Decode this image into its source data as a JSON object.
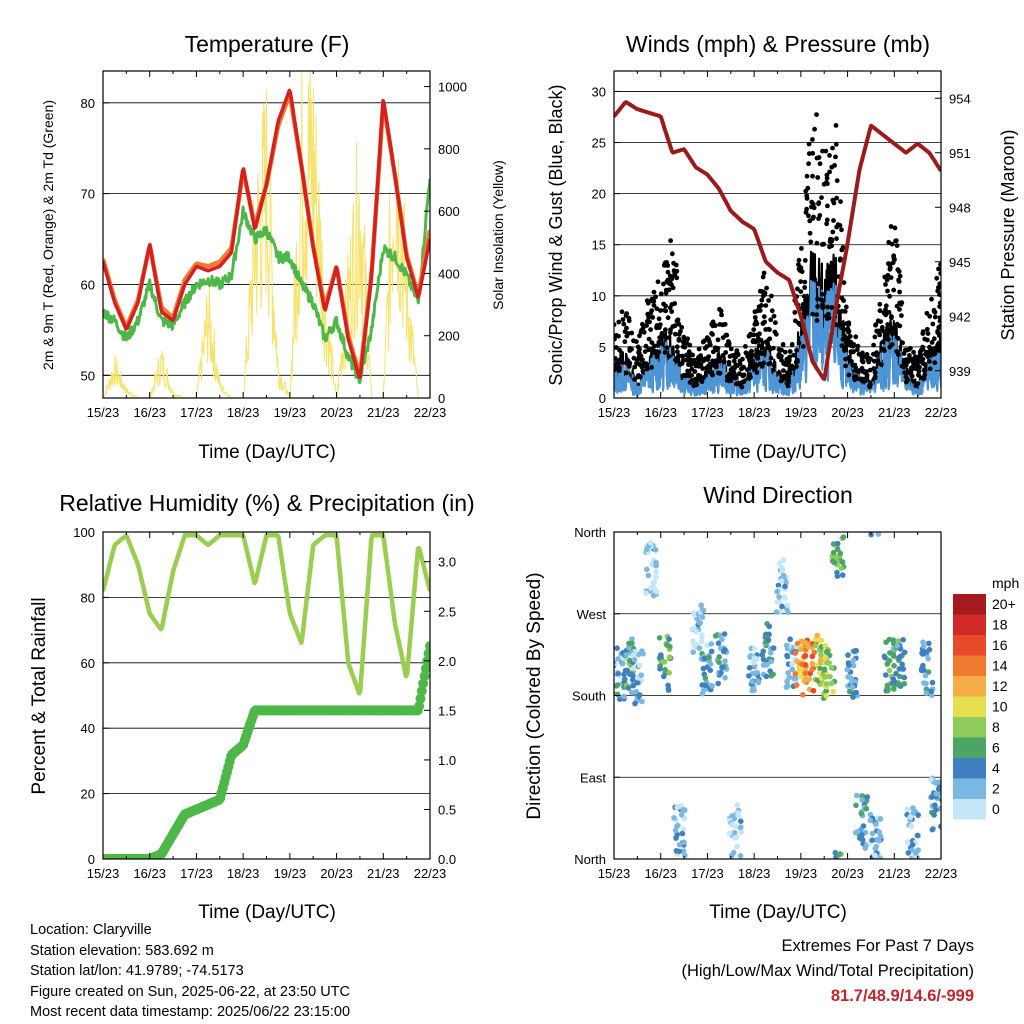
{
  "x_ticks": [
    "15/23",
    "16/23",
    "17/23",
    "18/23",
    "19/23",
    "20/23",
    "21/23",
    "22/23"
  ],
  "panels": {
    "temperature": {
      "title": "Temperature (F)",
      "ylabel_left": "2m & 9m T (Red, Orange) & 2m Td (Green)",
      "ylabel_right": "Solar Insolation (Yellow)",
      "xlabel": "Time (Day/UTC)",
      "left_ticks": [
        "50",
        "60",
        "70",
        "80"
      ],
      "right_ticks": [
        "0",
        "200",
        "400",
        "600",
        "800",
        "1000"
      ]
    },
    "winds": {
      "title": "Winds (mph) & Pressure (mb)",
      "ylabel_left": "Sonic/Prop Wind & Gust (Blue, Black)",
      "ylabel_right": "Station Pressure (Maroon)",
      "xlabel": "Time (Day/UTC)",
      "left_ticks": [
        "0",
        "5",
        "10",
        "15",
        "20",
        "25",
        "30"
      ],
      "right_ticks": [
        "939",
        "942",
        "945",
        "948",
        "951",
        "954"
      ]
    },
    "humidity": {
      "title": "Relative Humidity (%) & Precipitation (in)",
      "ylabel_left": "Percent & Total Rainfall",
      "xlabel": "Time (Day/UTC)",
      "left_ticks": [
        "0",
        "20",
        "40",
        "60",
        "80",
        "100"
      ],
      "right_ticks": [
        "0.0",
        "0.5",
        "1.0",
        "1.5",
        "2.0",
        "2.5",
        "3.0"
      ]
    },
    "direction": {
      "title": "Wind Direction",
      "ylabel_left": "Direction (Colored By Speed)",
      "xlabel": "Time (Day/UTC)",
      "left_ticks": [
        "North",
        "East",
        "South",
        "West",
        "North"
      ],
      "legend_unit": "mph",
      "legend_labels": [
        "20+",
        "18",
        "16",
        "14",
        "12",
        "10",
        "8",
        "6",
        "4",
        "2",
        "0"
      ],
      "legend_colors": [
        "#a51a1e",
        "#cf2a27",
        "#e84b2c",
        "#f07b30",
        "#f6ad45",
        "#e6df4f",
        "#8fcb5a",
        "#4aa566",
        "#3f80c0",
        "#7ab8e2",
        "#c5e6f7"
      ]
    }
  },
  "station": {
    "location": "Location: Claryville",
    "elevation": "Station elevation: 583.692 m",
    "latlon": "Station lat/lon: 41.9789; -74.5173",
    "created": "Figure created on Sun, 2025-06-22, at 23:50 UTC",
    "latest": "Most recent data timestamp: 2025/06/22 23:15:00"
  },
  "extremes": {
    "line1": "Extremes For Past 7 Days",
    "line2": "(High/Low/Max Wind/Total Precipitation)",
    "values": "81.7/48.9/14.6/-999"
  },
  "colors": {
    "temp_2m": "#d42020",
    "temp_9m": "#f07b30",
    "dewpoint": "#4db848",
    "insolation": "#f7e36b",
    "wind": "#4c96d7",
    "gust": "#000000",
    "pressure": "#9b1b1b",
    "humidity": "#9acd50",
    "precip": "#4db848"
  },
  "chart_data": [
    {
      "type": "line",
      "title": "Temperature (F)",
      "xlabel": "Time (Day/UTC)",
      "ylabel": "2m & 9m T (Red, Orange) & 2m Td (Green)",
      "ylabel_right": "Solar Insolation (Yellow)",
      "x_day": [
        15.0,
        15.25,
        15.5,
        15.75,
        16.0,
        16.25,
        16.5,
        16.75,
        17.0,
        17.25,
        17.5,
        17.75,
        18.0,
        18.25,
        18.5,
        18.75,
        19.0,
        19.25,
        19.5,
        19.75,
        20.0,
        20.25,
        20.5,
        20.75,
        21.0,
        21.25,
        21.5,
        21.75,
        22.0
      ],
      "ylim": [
        47.5,
        83.5
      ],
      "y2lim": [
        0,
        1050
      ],
      "series": [
        {
          "name": "2m T",
          "values": [
            62.5,
            58.0,
            55.0,
            58.0,
            64.5,
            57.0,
            56.0,
            60.0,
            62.0,
            61.5,
            62.0,
            63.5,
            73.0,
            66.0,
            71.0,
            78.0,
            81.5,
            73.0,
            64.0,
            57.0,
            62.0,
            54.0,
            49.5,
            61.0,
            80.5,
            72.0,
            63.0,
            58.5,
            65.0
          ]
        },
        {
          "name": "9m T",
          "values": [
            62.8,
            58.3,
            55.3,
            58.3,
            64.3,
            57.5,
            56.3,
            60.5,
            62.3,
            62.0,
            62.5,
            64.0,
            72.5,
            66.5,
            71.0,
            77.5,
            81.0,
            73.0,
            64.2,
            57.5,
            62.0,
            54.3,
            50.0,
            61.2,
            80.0,
            72.0,
            63.2,
            58.8,
            66.0
          ]
        },
        {
          "name": "2m Td",
          "values": [
            57.0,
            56.0,
            54.0,
            56.0,
            60.0,
            56.0,
            55.5,
            58.0,
            60.0,
            60.5,
            60.0,
            61.0,
            68.0,
            65.0,
            66.0,
            63.0,
            63.0,
            60.0,
            58.0,
            54.0,
            56.0,
            52.0,
            49.5,
            55.0,
            64.0,
            63.0,
            61.0,
            58.0,
            72.0
          ]
        },
        {
          "name": "Solar Insolation",
          "y_axis": "right",
          "values": [
            0,
            120,
            30,
            0,
            0,
            150,
            20,
            0,
            0,
            340,
            50,
            0,
            0,
            620,
            900,
            110,
            0,
            940,
            1000,
            360,
            0,
            420,
            800,
            0,
            0,
            1000,
            430,
            0,
            0
          ]
        }
      ]
    },
    {
      "type": "line",
      "title": "Winds (mph) & Pressure (mb)",
      "xlabel": "Time (Day/UTC)",
      "ylabel": "Sonic/Prop Wind & Gust (Blue, Black)",
      "ylabel_right": "Station Pressure (Maroon)",
      "x_day": [
        15.0,
        15.25,
        15.5,
        15.75,
        16.0,
        16.25,
        16.5,
        16.75,
        17.0,
        17.25,
        17.5,
        17.75,
        18.0,
        18.25,
        18.5,
        18.75,
        19.0,
        19.25,
        19.5,
        19.75,
        20.0,
        20.25,
        20.5,
        20.75,
        21.0,
        21.25,
        21.5,
        21.75,
        22.0
      ],
      "ylim": [
        0,
        32
      ],
      "y2lim": [
        937.5,
        955.5
      ],
      "series": [
        {
          "name": "Wind",
          "values": [
            2,
            3,
            1,
            3,
            4,
            5,
            2,
            1,
            2,
            3,
            2,
            1,
            3,
            4,
            2,
            1,
            5,
            10,
            8,
            9,
            3,
            2,
            1,
            4,
            6,
            2,
            1,
            3,
            4
          ]
        },
        {
          "name": "Gust",
          "values": [
            6,
            7,
            4,
            8,
            9,
            12,
            5,
            3,
            5,
            7,
            4,
            3,
            6,
            10,
            5,
            3,
            12,
            22,
            18,
            20,
            6,
            4,
            3,
            9,
            14,
            4,
            3,
            7,
            10
          ]
        },
        {
          "name": "Station Pressure",
          "y_axis": "right",
          "values": [
            953.0,
            953.8,
            953.4,
            953.2,
            953.0,
            951.0,
            951.2,
            950.2,
            949.8,
            949.0,
            947.8,
            947.2,
            946.8,
            945.0,
            944.4,
            944.0,
            942.0,
            939.5,
            938.5,
            942.5,
            946.0,
            950.0,
            952.5,
            952.0,
            951.5,
            951.0,
            951.5,
            951.0,
            950.0
          ]
        }
      ]
    },
    {
      "type": "line",
      "title": "Relative Humidity (%) & Precipitation (in)",
      "xlabel": "Time (Day/UTC)",
      "ylabel": "Percent & Total Rainfall",
      "x_day": [
        15.0,
        15.25,
        15.5,
        15.75,
        16.0,
        16.25,
        16.5,
        16.75,
        17.0,
        17.25,
        17.5,
        17.75,
        18.0,
        18.25,
        18.5,
        18.75,
        19.0,
        19.25,
        19.5,
        19.75,
        20.0,
        20.25,
        20.5,
        20.75,
        21.0,
        21.25,
        21.5,
        21.75,
        22.0
      ],
      "ylim": [
        0,
        100
      ],
      "y2lim": [
        0,
        3.3
      ],
      "series": [
        {
          "name": "Relative Humidity",
          "values": [
            82,
            96,
            99,
            90,
            75,
            70,
            88,
            99,
            99,
            96,
            99,
            99,
            99,
            84,
            99,
            99,
            75,
            66,
            96,
            99,
            99,
            60,
            50,
            99,
            99,
            72,
            55,
            96,
            82
          ]
        },
        {
          "name": "Total Precipitation",
          "y_axis": "right",
          "values": [
            0,
            0,
            0,
            0,
            0,
            0.05,
            0.25,
            0.45,
            0.5,
            0.55,
            0.6,
            1.05,
            1.15,
            1.5,
            1.5,
            1.5,
            1.5,
            1.5,
            1.5,
            1.5,
            1.5,
            1.5,
            1.5,
            1.5,
            1.5,
            1.5,
            1.5,
            1.5,
            2.15
          ]
        }
      ]
    },
    {
      "type": "scatter",
      "title": "Wind Direction",
      "xlabel": "Time (Day/UTC)",
      "ylabel": "Direction (Colored By Speed)",
      "ylim": [
        0,
        360
      ],
      "x_day": [
        15.1,
        15.3,
        15.5,
        15.8,
        16.1,
        16.4,
        16.8,
        17.0,
        17.3,
        17.6,
        18.0,
        18.3,
        18.6,
        18.8,
        19.0,
        19.2,
        19.4,
        19.6,
        19.8,
        20.1,
        20.3,
        20.6,
        20.9,
        21.1,
        21.4,
        21.7,
        21.9
      ],
      "direction_deg": [
        205,
        215,
        200,
        320,
        215,
        30,
        250,
        210,
        220,
        30,
        210,
        230,
        300,
        215,
        210,
        215,
        220,
        205,
        340,
        200,
        40,
        20,
        215,
        220,
        30,
        210,
        60
      ],
      "speed_mph": [
        3,
        5,
        2,
        1,
        6,
        2,
        1,
        3,
        4,
        1,
        2,
        4,
        1,
        2,
        12,
        14,
        9,
        8,
        6,
        3,
        4,
        2,
        6,
        5,
        2,
        4,
        3
      ]
    }
  ]
}
